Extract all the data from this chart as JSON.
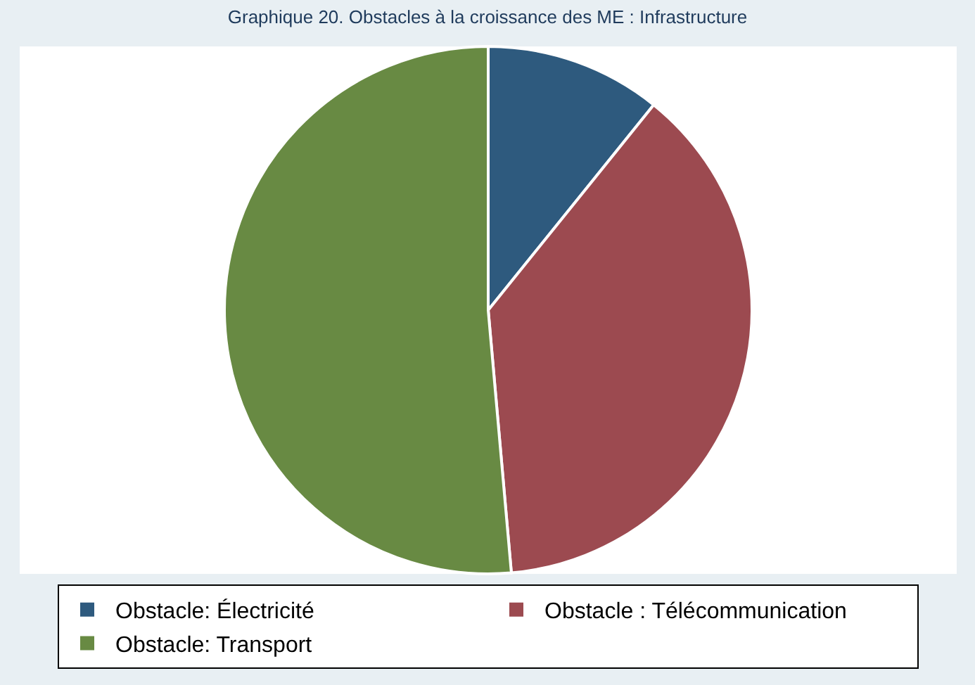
{
  "chart_data": {
    "type": "pie",
    "title": "Graphique 20. Obstacles à la croissance des ME : Infrastructure",
    "categories": [
      "Obstacle: Électricité",
      "Obstacle : Télécommunication",
      "Obstacle: Transport"
    ],
    "values": [
      10.8,
      37.8,
      51.4
    ],
    "colors": [
      "#2e5a7e",
      "#9c4a50",
      "#688a43"
    ],
    "legend": "bottom"
  }
}
